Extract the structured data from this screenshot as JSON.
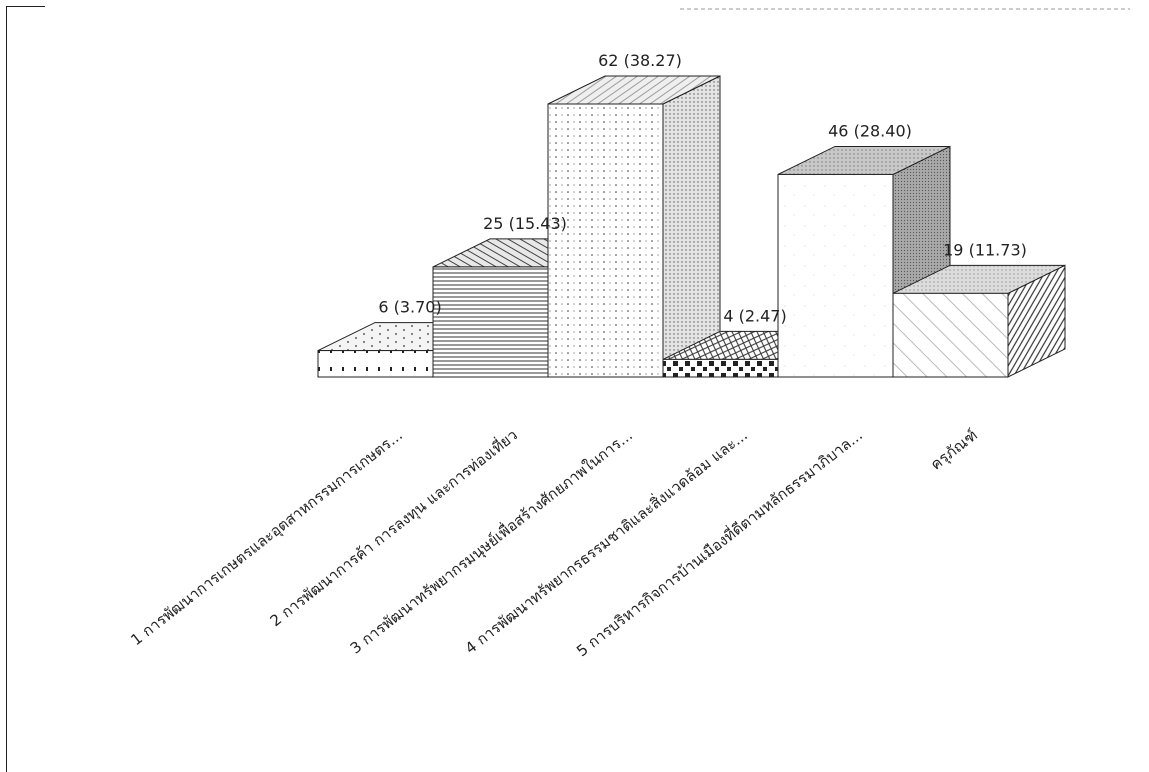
{
  "chart_data": {
    "type": "bar",
    "style": "3d-hatched",
    "categories": [
      "1 การพัฒนาการเกษตรและอุตสาหกรรมการเกษตร...",
      "2 การพัฒนาการค้า การลงทุน และการท่องเที่ยว",
      "3 การพัฒนาทรัพยากรมนุษย์เพื่อสร้างศักยภาพในการ...",
      "4 การพัฒนาทรัพยากรธรรมชาติและสิ่งแวดล้อม และ...",
      "5 การบริหารกิจการบ้านเมืองที่ดีตามหลักธรรมาภิบาล...",
      "ครุภัณฑ์"
    ],
    "values": [
      6,
      25,
      62,
      4,
      46,
      19
    ],
    "data_labels": [
      "6 (3.70)",
      "25 (15.43)",
      "62 (38.27)",
      "4 (2.47)",
      "46 (28.40)",
      "19 (11.73)"
    ],
    "ylim": [
      0,
      62
    ],
    "grid": false,
    "legend": "none"
  }
}
